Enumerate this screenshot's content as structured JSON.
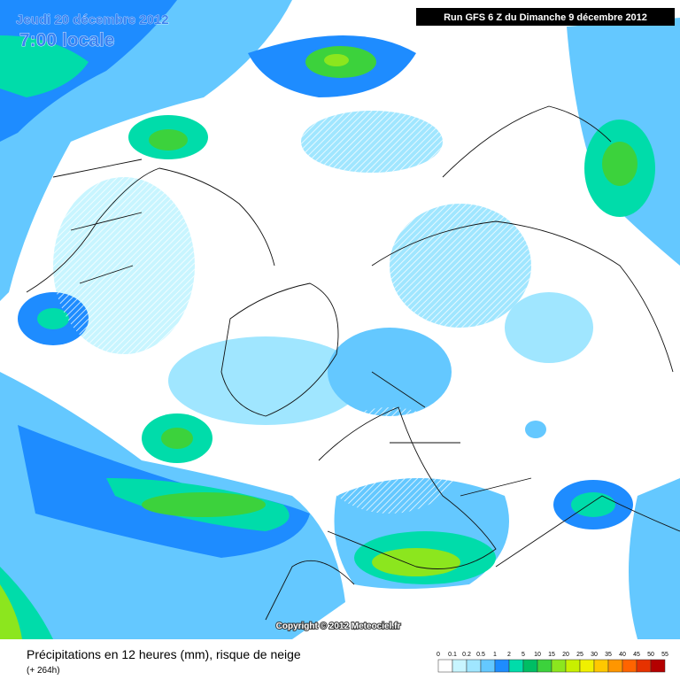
{
  "header": {
    "date": "Jeudi 20 décembre 2012",
    "time": "7:00 locale",
    "run": "Run GFS 6 Z du Dimanche 9 décembre 2012"
  },
  "copyright": "Copyright © 2012 Meteociel.fr",
  "footer": {
    "title": "Précipitations en 12 heures (mm), risque de neige",
    "subtitle": "(+ 264h)"
  },
  "legend": {
    "labels": [
      "0",
      "0.1",
      "0.2",
      "0.5",
      "1",
      "2",
      "5",
      "10",
      "15",
      "20",
      "25",
      "30",
      "35",
      "40",
      "45",
      "50",
      "55"
    ],
    "colors": [
      "#ffffff",
      "#c8f5ff",
      "#a0e6ff",
      "#64c8ff",
      "#1e8cff",
      "#00dcaa",
      "#00be64",
      "#3cd23c",
      "#8ce61e",
      "#c8f000",
      "#f0f000",
      "#ffc800",
      "#ff9600",
      "#ff6400",
      "#e63200",
      "#b40000"
    ]
  }
}
